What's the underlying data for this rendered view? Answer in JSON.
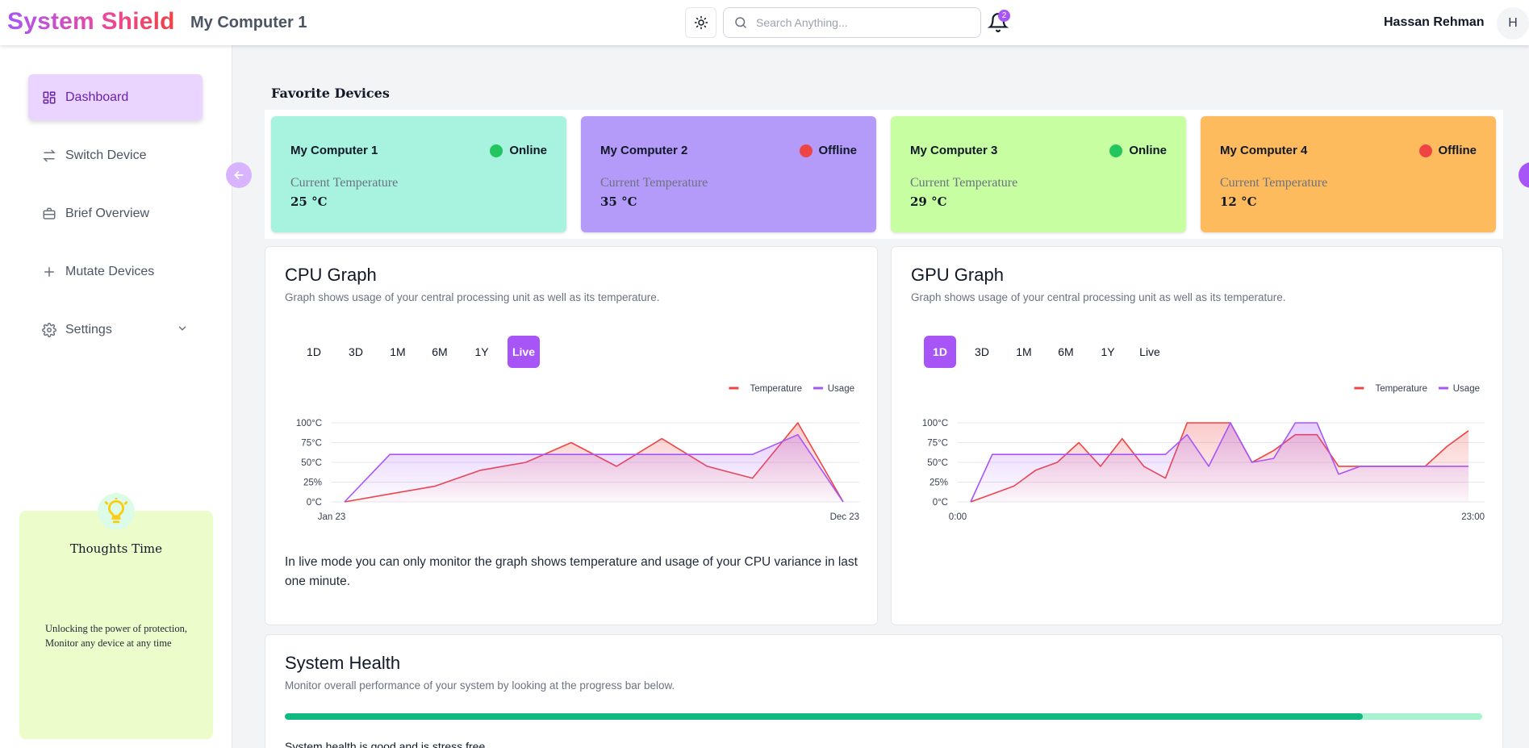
{
  "header": {
    "brand": "System Shield",
    "device_title": "My Computer 1",
    "search_placeholder": "Search Anything...",
    "notification_count": "2",
    "user_name": "Hassan Rehman",
    "avatar_initial": "H"
  },
  "sidebar": {
    "items": [
      {
        "label": "Dashboard",
        "icon": "dashboard-icon",
        "active": true
      },
      {
        "label": "Switch Device",
        "icon": "switch-arrows-icon"
      },
      {
        "label": "Brief Overview",
        "icon": "briefcase-icon"
      },
      {
        "label": "Mutate Devices",
        "icon": "plus-icon"
      },
      {
        "label": "Settings",
        "icon": "gear-icon"
      }
    ],
    "thoughts": {
      "title": "Thoughts Time",
      "text": "Unlocking the power of protection, Monitor any device at any time"
    }
  },
  "favorites": {
    "title": "Favorite Devices",
    "temp_label": "Current Temperature",
    "devices": [
      {
        "name": "My Computer 1",
        "status": "Online",
        "temp": "25 °C",
        "bg": "#a7f3df",
        "status_color": "#22c55e"
      },
      {
        "name": "My Computer 2",
        "status": "Offline",
        "temp": "35 °C",
        "bg": "#b59bf9",
        "status_color": "#ef4444"
      },
      {
        "name": "My Computer 3",
        "status": "Online",
        "temp": "29 °C",
        "bg": "#c6fea1",
        "status_color": "#22c55e"
      },
      {
        "name": "My Computer 4",
        "status": "Offline",
        "temp": "12 °C",
        "bg": "#fdbb5d",
        "status_color": "#ef4444"
      }
    ]
  },
  "cpu": {
    "title": "CPU Graph",
    "subtitle": "Graph shows usage of your central processing unit as well as its temperature.",
    "ranges": [
      "1D",
      "3D",
      "1M",
      "6M",
      "1Y",
      "Live"
    ],
    "active_range": "Live",
    "note": "In live mode you can only monitor the graph shows temperature and usage of your CPU variance in last one minute."
  },
  "gpu": {
    "title": "GPU Graph",
    "subtitle": "Graph shows usage of your central processing unit as well as its temperature.",
    "ranges": [
      "1D",
      "3D",
      "1M",
      "6M",
      "1Y",
      "Live"
    ],
    "active_range": "1D"
  },
  "health": {
    "title": "System Health",
    "subtitle": "Monitor overall performance of your system by looking at the progress bar below.",
    "percent": 90,
    "status_text": "System health is good and is stress free"
  },
  "chart_data": [
    {
      "type": "area",
      "title": "CPU Graph",
      "x_ticks": [
        "Jan 23",
        "Dec 23"
      ],
      "y_ticks": [
        "0°C",
        "25%",
        "50°C",
        "75°C",
        "100°C"
      ],
      "ylim": [
        0,
        100
      ],
      "legend": "top-right",
      "series": [
        {
          "name": "Temperature",
          "color": "#ef4444",
          "values": [
            0,
            10,
            20,
            40,
            50,
            75,
            45,
            80,
            45,
            30,
            100,
            0
          ]
        },
        {
          "name": "Usage",
          "color": "#a855f7",
          "values": [
            0,
            60,
            60,
            60,
            60,
            60,
            60,
            60,
            60,
            60,
            85,
            0
          ]
        }
      ]
    },
    {
      "type": "area",
      "title": "GPU Graph",
      "x_ticks": [
        "0:00",
        "23:00"
      ],
      "y_ticks": [
        "0°C",
        "25%",
        "50°C",
        "75°C",
        "100°C"
      ],
      "ylim": [
        0,
        100
      ],
      "legend": "top-right",
      "series": [
        {
          "name": "Temperature",
          "color": "#ef4444",
          "values": [
            0,
            10,
            20,
            40,
            50,
            75,
            45,
            80,
            45,
            30,
            100,
            100,
            100,
            50,
            65,
            85,
            85,
            45,
            45,
            45,
            45,
            45,
            70,
            90
          ]
        },
        {
          "name": "Usage",
          "color": "#a855f7",
          "values": [
            0,
            60,
            60,
            60,
            60,
            60,
            60,
            60,
            60,
            60,
            85,
            45,
            100,
            50,
            55,
            100,
            100,
            35,
            45,
            45,
            45,
            45,
            45,
            45
          ]
        }
      ]
    }
  ]
}
